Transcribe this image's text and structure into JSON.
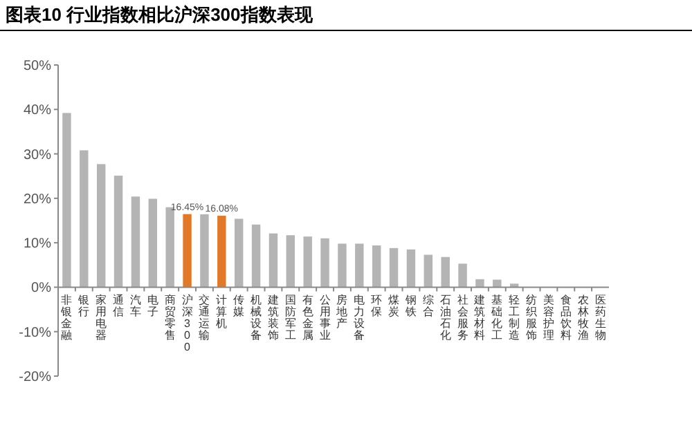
{
  "chart_data": {
    "type": "bar",
    "title": "图表10    行业指数相比沪深300指数表现",
    "categories": [
      "非银金融",
      "银行",
      "家用电器",
      "通信",
      "汽车",
      "电子",
      "商贸零售",
      "沪深300",
      "交通运输",
      "计算机",
      "传媒",
      "机械设备",
      "建筑装饰",
      "国防军工",
      "有色金属",
      "公用事业",
      "房地产",
      "电力设备",
      "环保",
      "煤炭",
      "钢铁",
      "综合",
      "石油石化",
      "社会服务",
      "建筑材料",
      "基础化工",
      "轻工制造",
      "纺织服饰",
      "美容护理",
      "食品饮料",
      "农林牧渔",
      "医药生物"
    ],
    "values": [
      39.2,
      30.8,
      27.7,
      25.1,
      20.4,
      19.9,
      18.0,
      16.45,
      16.4,
      16.08,
      15.4,
      14.1,
      12.1,
      11.7,
      11.4,
      11.0,
      9.8,
      9.8,
      9.4,
      8.8,
      8.5,
      7.3,
      6.8,
      5.3,
      1.8,
      1.7,
      0.8,
      null,
      null,
      -0.1,
      null,
      null
    ],
    "colors": [
      "#b4b4b4",
      "#b4b4b4",
      "#b4b4b4",
      "#b4b4b4",
      "#b4b4b4",
      "#b4b4b4",
      "#b4b4b4",
      "#e07a2a",
      "#b4b4b4",
      "#e07a2a",
      "#b4b4b4",
      "#b4b4b4",
      "#b4b4b4",
      "#b4b4b4",
      "#b4b4b4",
      "#b4b4b4",
      "#b4b4b4",
      "#b4b4b4",
      "#b4b4b4",
      "#b4b4b4",
      "#b4b4b4",
      "#b4b4b4",
      "#b4b4b4",
      "#b4b4b4",
      "#b4b4b4",
      "#b4b4b4",
      "#b4b4b4",
      null,
      null,
      "#b4b4b4",
      null,
      null
    ],
    "value_labels": [
      null,
      null,
      null,
      null,
      null,
      null,
      null,
      "16.45%",
      null,
      "16.08%",
      null,
      null,
      null,
      null,
      null,
      null,
      null,
      null,
      null,
      null,
      null,
      null,
      null,
      null,
      null,
      null,
      null,
      null,
      null,
      null,
      null,
      null
    ],
    "ylim": [
      -20,
      50
    ],
    "yticks": [
      {
        "value": -20,
        "label": "-20%"
      },
      {
        "value": -10,
        "label": "-10%"
      },
      {
        "value": 0,
        "label": "0%"
      },
      {
        "value": 10,
        "label": "10%"
      },
      {
        "value": 20,
        "label": "20%"
      },
      {
        "value": 30,
        "label": "30%"
      },
      {
        "value": 40,
        "label": "40%"
      },
      {
        "value": 50,
        "label": "50%"
      }
    ],
    "grid": false
  }
}
